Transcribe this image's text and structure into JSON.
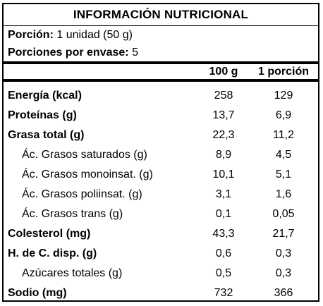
{
  "title": "INFORMACIÓN NUTRICIONAL",
  "serving": {
    "portion_label": "Porción:",
    "portion_value": "1 unidad (50 g)",
    "servings_label": "Porciones por envase:",
    "servings_value": "5"
  },
  "columns": {
    "per100": "100 g",
    "perPortion": "1 porción"
  },
  "rows": [
    {
      "name": "Energía (kcal)",
      "v100": "258",
      "vPortion": "129",
      "bold": true
    },
    {
      "name": "Proteínas (g)",
      "v100": "13,7",
      "vPortion": "6,9",
      "bold": true
    },
    {
      "name": "Grasa total (g)",
      "v100": "22,3",
      "vPortion": "11,2",
      "bold": true
    },
    {
      "name": "Ác. Grasos saturados (g)",
      "v100": "8,9",
      "vPortion": "4,5",
      "bold": false
    },
    {
      "name": "Ác. Grasos monoinsat. (g)",
      "v100": "10,1",
      "vPortion": "5,1",
      "bold": false
    },
    {
      "name": "Ác. Grasos poliinsat. (g)",
      "v100": "3,1",
      "vPortion": "1,6",
      "bold": false
    },
    {
      "name": "Ác. Grasos trans (g)",
      "v100": "0,1",
      "vPortion": "0,05",
      "bold": false
    },
    {
      "name": "Colesterol (mg)",
      "v100": "43,3",
      "vPortion": "21,7",
      "bold": true
    },
    {
      "name": "H. de C. disp. (g)",
      "v100": "0,6",
      "vPortion": "0,3",
      "bold": true
    },
    {
      "name": "Azúcares totales (g)",
      "v100": "0,5",
      "vPortion": "0,3",
      "bold": false
    },
    {
      "name": "Sodio (mg)",
      "v100": "732",
      "vPortion": "366",
      "bold": true
    }
  ]
}
